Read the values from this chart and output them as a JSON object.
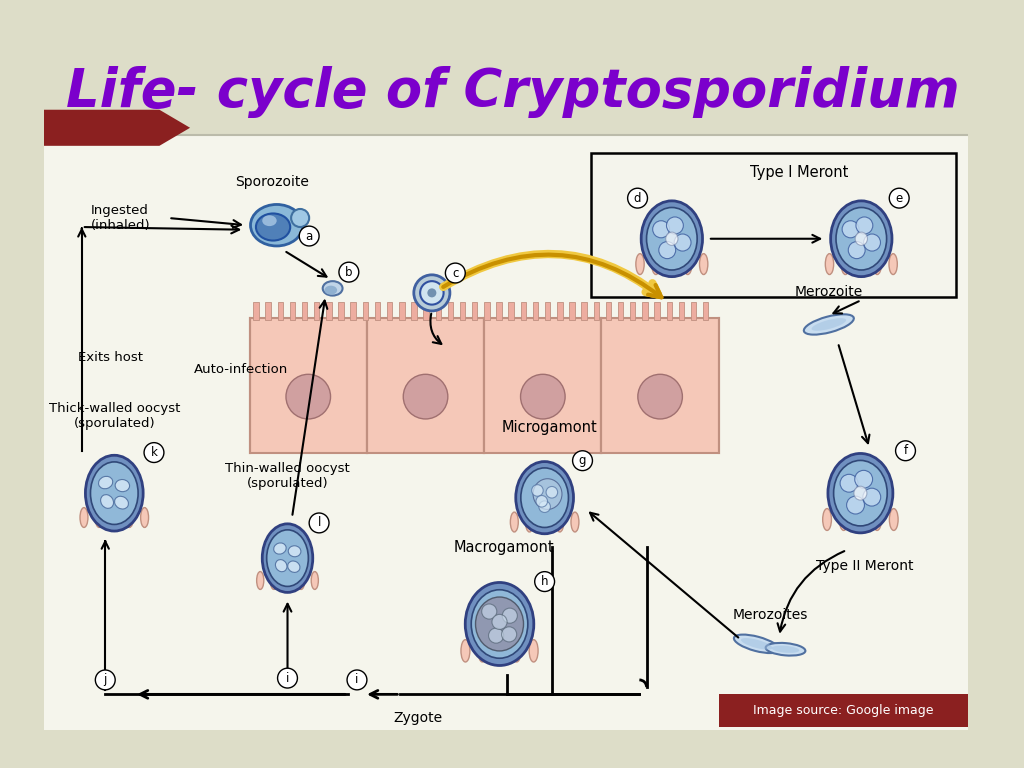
{
  "title": "Life- cycle of Cryptosporidium",
  "title_color": "#7B00CC",
  "title_fontsize": 38,
  "bg_top": "#DDDDC8",
  "bg_bottom": "#FFFFFF",
  "source_text": "Image source: Google image",
  "source_bg": "#8B2020",
  "source_color": "#FFFFFF",
  "cell_fill": "#F5C8B8",
  "cell_edge": "#C09080",
  "nucleus_fill": "#D8A0A0",
  "oocyst_outer": "#6080B0",
  "oocyst_inner": "#8AAAD0",
  "merozoite_fill": "#B8D0E8",
  "merozoite_edge": "#5070A0",
  "labels": {
    "sporozoite": "Sporozoite",
    "ingested": "Ingested\n(inhaled)",
    "exits": "Exits host",
    "thick_walled": "Thick-walled oocyst\n(sporulated)",
    "thin_walled": "Thin-walled oocyst\n(sporulated)",
    "auto_infection": "Auto-infection",
    "type1": "Type I Meront",
    "type2": "Type II Meront",
    "merozoite": "Merozoite",
    "merozoites": "Merozoites",
    "microgamont": "Microgamont",
    "macrogamont": "Macrogamont",
    "zygote": "Zygote"
  }
}
